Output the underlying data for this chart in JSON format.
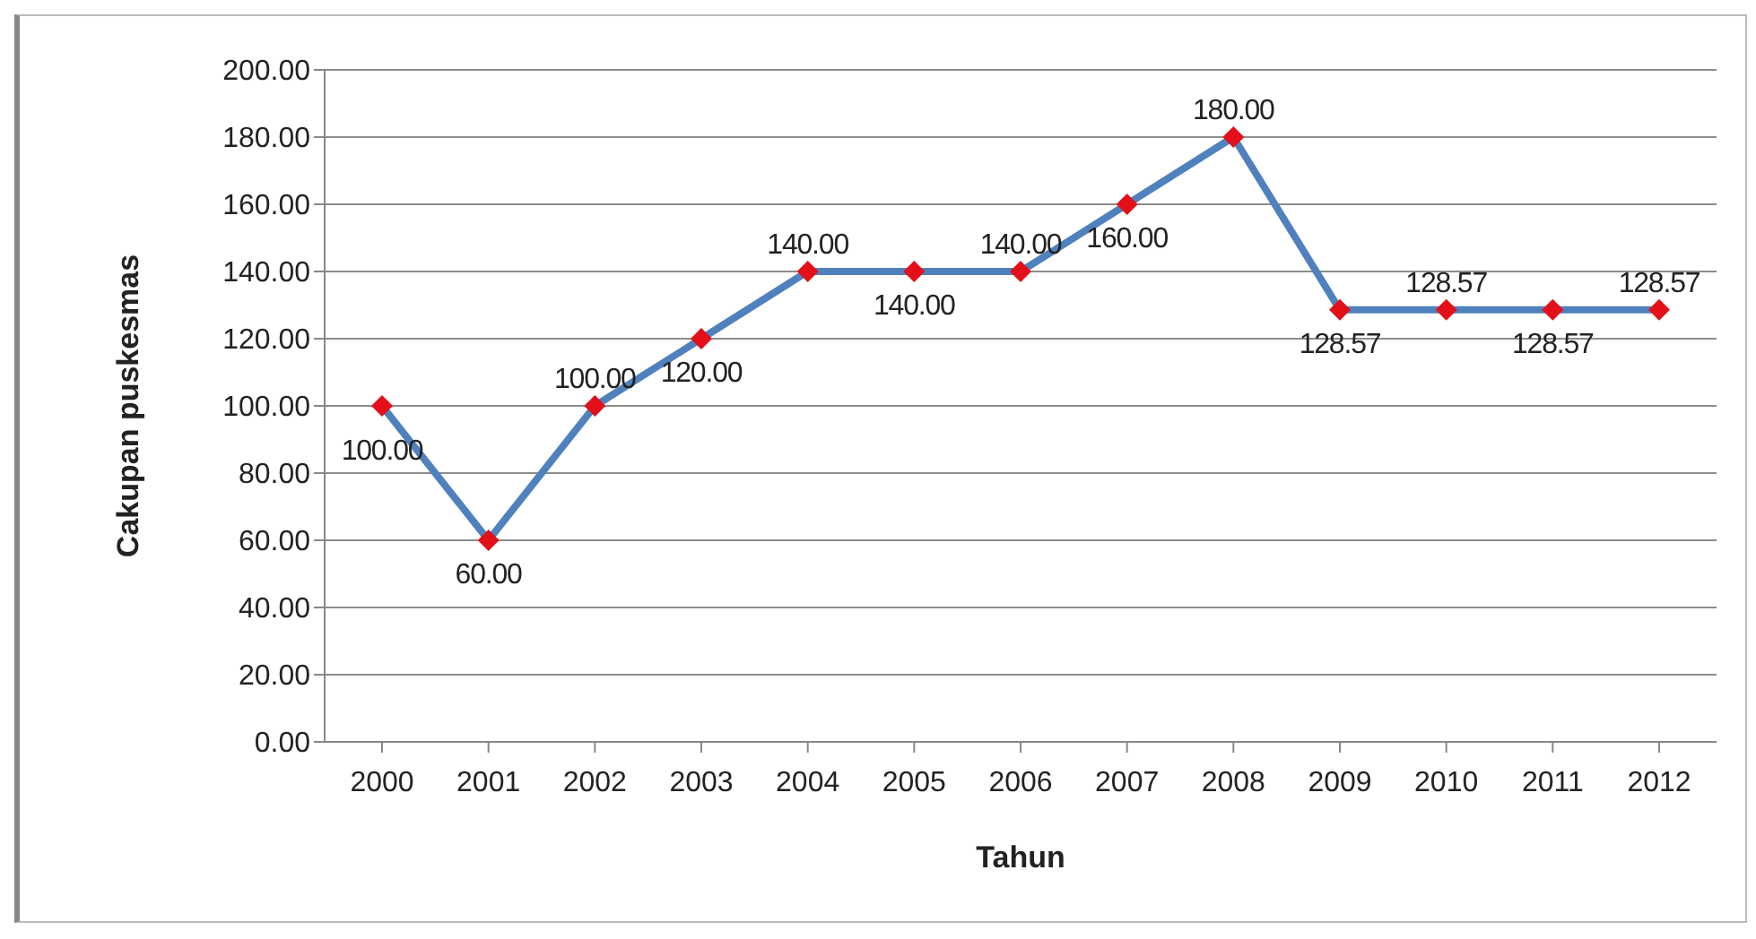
{
  "chart_data": {
    "type": "line",
    "xlabel": "Tahun",
    "ylabel": "Cakupan puskesmas",
    "categories": [
      "2000",
      "2001",
      "2002",
      "2003",
      "2004",
      "2005",
      "2006",
      "2007",
      "2008",
      "2009",
      "2010",
      "2011",
      "2012"
    ],
    "series": [
      {
        "color": "#4f81bd",
        "colors": [
          "#e3101a",
          "#e3101a",
          "#e3101a",
          "#e3101a",
          "#e3101a",
          "#e3101a",
          "#e3101a",
          "#e3101a",
          "#e3101a",
          "#e3101a",
          "#e3101a",
          "#e3101a",
          "#e3101a"
        ],
        "values": [
          100,
          60,
          100,
          120,
          140,
          140,
          140,
          160,
          180,
          128.57,
          128.57,
          128.57,
          128.57
        ],
        "value_labels": [
          "100.00",
          "60.00",
          "100.00",
          "120.00",
          "140.00",
          "140.00",
          "140.00",
          "160.00",
          "180.00",
          "128.57",
          "128.57",
          "128.57",
          "128.57"
        ]
      }
    ],
    "ylim": [
      0,
      200
    ],
    "yticks": [
      {
        "value": 0,
        "label": "0.00"
      },
      {
        "value": 20,
        "label": "20.00"
      },
      {
        "value": 40,
        "label": "40.00"
      },
      {
        "value": 60,
        "label": "60.00"
      },
      {
        "value": 80,
        "label": "80.00"
      },
      {
        "value": 100,
        "label": "100.00"
      },
      {
        "value": 120,
        "label": "120.00"
      },
      {
        "value": 140,
        "label": "140.00"
      },
      {
        "value": 160,
        "label": "160.00"
      },
      {
        "value": 180,
        "label": "180.00"
      },
      {
        "value": 200,
        "label": "200.00"
      }
    ],
    "grid": "y",
    "marker": "diamond",
    "line_style": "solid"
  }
}
